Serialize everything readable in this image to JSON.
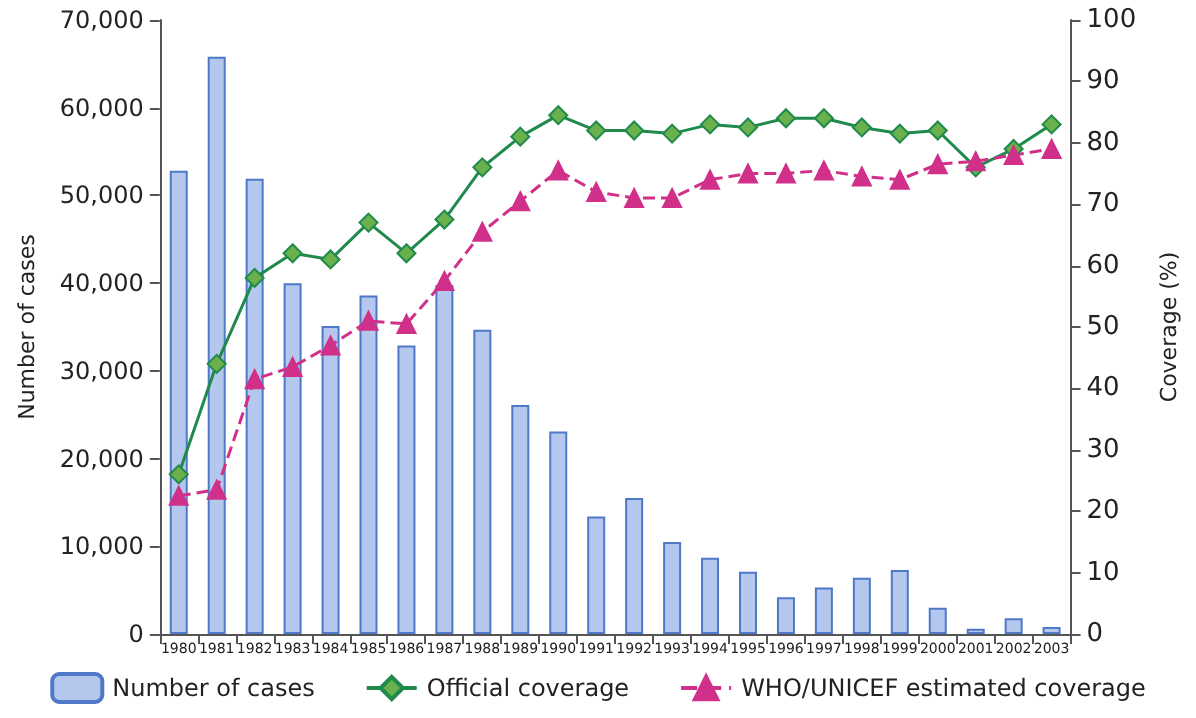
{
  "chart_data": {
    "type": "bar",
    "ylabel": "Number of cases",
    "y2label": "Coverage (%)",
    "categories": [
      "1980",
      "1981",
      "1982",
      "1983",
      "1984",
      "1985",
      "1986",
      "1987",
      "1988",
      "1989",
      "1990",
      "1991",
      "1992",
      "1993",
      "1994",
      "1995",
      "1996",
      "1997",
      "1998",
      "1999",
      "2000",
      "2001",
      "2002",
      "2003"
    ],
    "series": [
      {
        "name": "Number of cases",
        "color": "#b4c8ee",
        "values": [
          52800,
          65800,
          51900,
          40000,
          35100,
          38600,
          32900,
          39800,
          34700,
          26100,
          23100,
          13400,
          15500,
          10500,
          8700,
          7100,
          4200,
          5300,
          6400,
          7300,
          3000,
          600,
          1800,
          800
        ]
      },
      {
        "name": "Official coverage",
        "type": "line",
        "axis": "y2",
        "color": "#1f8a4c",
        "marker": "diamond",
        "line_style": "solid",
        "values": [
          26,
          44,
          58,
          62,
          61,
          67,
          62,
          67.5,
          76,
          81,
          84.5,
          82,
          82,
          81.5,
          83,
          82.5,
          84,
          84,
          82.5,
          81.5,
          82,
          76,
          79,
          83
        ]
      },
      {
        "name": "WHO/UNICEF estimated coverage",
        "type": "line",
        "axis": "y2",
        "color": "#d0308a",
        "marker": "triangle",
        "line_style": "dashed",
        "values": [
          22.5,
          23.5,
          41.5,
          43.5,
          47,
          51,
          50.5,
          57.5,
          65.5,
          70.5,
          75.5,
          72,
          71,
          71,
          74,
          75,
          75,
          75.5,
          74.5,
          74,
          76.5,
          77,
          78,
          79
        ]
      }
    ],
    "ylim": [
      0,
      70000
    ],
    "yticks": [
      0,
      {
        "value": 10000,
        "label": "10,000"
      },
      {
        "value": 20000,
        "label": "20,000"
      },
      {
        "value": 30000,
        "label": "30,000"
      },
      {
        "value": 40000,
        "label": "40,000"
      },
      {
        "value": 50000,
        "label": "50,000"
      },
      {
        "value": 60000,
        "label": "60,000"
      },
      {
        "value": 70000,
        "label": "70,000"
      }
    ],
    "y2lim": [
      0,
      100
    ],
    "y2ticks": [
      0,
      10,
      20,
      30,
      40,
      50,
      60,
      70,
      80,
      90,
      100
    ],
    "grid": false,
    "legend": "bottom"
  }
}
